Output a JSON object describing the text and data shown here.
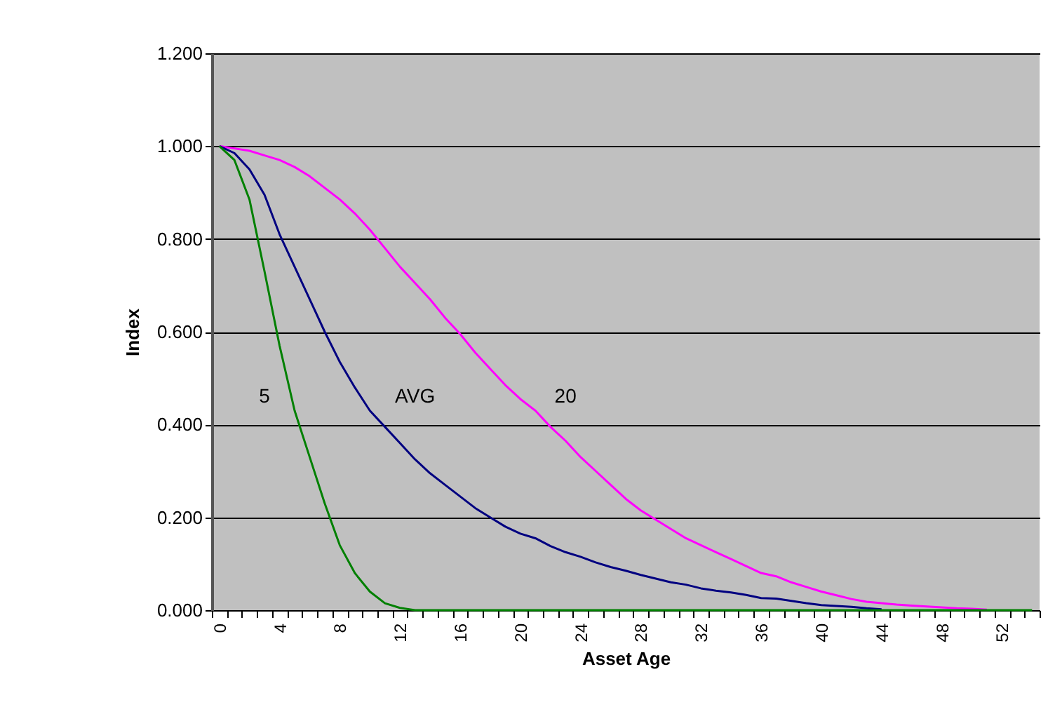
{
  "chart_data": {
    "type": "line",
    "xlabel": "Asset Age",
    "ylabel": "Index",
    "categories": [
      "0",
      null,
      null,
      null,
      "4",
      null,
      null,
      null,
      "8",
      null,
      null,
      null,
      "12",
      null,
      null,
      null,
      "16",
      null,
      null,
      null,
      "20",
      null,
      null,
      null,
      "24",
      null,
      null,
      null,
      "28",
      null,
      null,
      null,
      "32",
      null,
      null,
      null,
      "36",
      null,
      null,
      null,
      "40",
      null,
      null,
      null,
      "44",
      null,
      null,
      null,
      "48",
      null,
      null,
      null,
      "52",
      null,
      null
    ],
    "ylim": [
      0,
      1.2
    ],
    "yticks": [
      {
        "value": 0,
        "label": "0.000"
      },
      {
        "value": 0.2,
        "label": "0.200"
      },
      {
        "value": 0.4,
        "label": "0.400"
      },
      {
        "value": 0.6,
        "label": "0.600"
      },
      {
        "value": 0.8,
        "label": "0.800"
      },
      {
        "value": 1,
        "label": "1.000"
      },
      {
        "value": 1.2,
        "label": "1.200"
      }
    ],
    "grid": "y",
    "legend": false,
    "marker": "none",
    "line_style": "solid",
    "series": [
      {
        "name": "5",
        "color": "#008000",
        "values": [
          1,
          0.97,
          0.885,
          0.73,
          0.57,
          0.43,
          0.33,
          0.23,
          0.14,
          0.08,
          0.04,
          0.015,
          0.005,
          0,
          0,
          0,
          0,
          0,
          0,
          0,
          0,
          0,
          0,
          0,
          0,
          0,
          0,
          0,
          0,
          0,
          0,
          0,
          0,
          0,
          0,
          0,
          0,
          0,
          0,
          0,
          0,
          0,
          0,
          0,
          0,
          0,
          0,
          0,
          0,
          0,
          0,
          0,
          0,
          0,
          0
        ]
      },
      {
        "name": "AVG",
        "color": "#000080",
        "values": [
          1,
          0.985,
          0.95,
          0.895,
          0.81,
          0.74,
          0.67,
          0.6,
          0.535,
          0.48,
          0.43,
          0.395,
          0.36,
          0.325,
          0.295,
          0.27,
          0.245,
          0.22,
          0.2,
          0.18,
          0.165,
          0.155,
          0.138,
          0.125,
          0.115,
          0.103,
          0.093,
          0.085,
          0.076,
          0.068,
          0.06,
          0.055,
          0.047,
          0.042,
          0.038,
          0.033,
          0.026,
          0.025,
          0.02,
          0.015,
          0.011,
          0.009,
          0.007,
          0.004,
          0.002,
          null,
          null,
          null,
          null,
          null,
          null,
          null,
          null,
          null,
          null
        ]
      },
      {
        "name": "20",
        "color": "#ff00ff",
        "values": [
          1,
          0.995,
          0.99,
          0.98,
          0.97,
          0.955,
          0.935,
          0.91,
          0.885,
          0.855,
          0.82,
          0.78,
          0.74,
          0.705,
          0.67,
          0.63,
          0.595,
          0.555,
          0.52,
          0.485,
          0.455,
          0.43,
          0.395,
          0.365,
          0.33,
          0.3,
          0.27,
          0.24,
          0.215,
          0.195,
          0.175,
          0.155,
          0.14,
          0.125,
          0.11,
          0.095,
          0.08,
          0.073,
          0.06,
          0.05,
          0.04,
          0.032,
          0.024,
          0.018,
          0.015,
          0.012,
          0.01,
          0.008,
          0.006,
          0.004,
          0.003,
          0.001,
          null,
          null,
          null
        ]
      }
    ]
  }
}
